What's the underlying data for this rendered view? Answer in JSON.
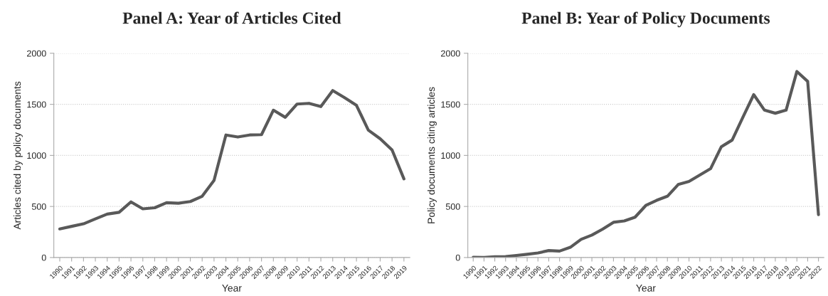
{
  "chart_data": [
    {
      "type": "line",
      "title": "Panel A: Year of Articles Cited",
      "xlabel": "Year",
      "ylabel": "Articles cited by policy documents",
      "categories": [
        "1990",
        "1991",
        "1992",
        "1993",
        "1994",
        "1995",
        "1996",
        "1997",
        "1998",
        "1999",
        "2000",
        "2001",
        "2002",
        "2003",
        "2004",
        "2005",
        "2006",
        "2007",
        "2008",
        "2009",
        "2010",
        "2011",
        "2012",
        "2013",
        "2014",
        "2015",
        "2016",
        "2017",
        "2018",
        "2019"
      ],
      "series": [
        {
          "color": "#595959",
          "values": [
            280,
            305,
            330,
            378,
            425,
            443,
            545,
            477,
            487,
            537,
            532,
            548,
            600,
            755,
            1200,
            1180,
            1200,
            1203,
            1443,
            1373,
            1503,
            1510,
            1478,
            1635,
            1565,
            1490,
            1248,
            1163,
            1053,
            770
          ]
        }
      ],
      "ylim": [
        0,
        2000
      ],
      "yticks": [
        0,
        500,
        1000,
        1500,
        2000
      ],
      "grid": "y",
      "line_style": "solid"
    },
    {
      "type": "line",
      "title": "Panel B: Year of Policy Documents",
      "xlabel": "Year",
      "ylabel": "Policy documents citing articles",
      "categories": [
        "1990",
        "1991",
        "1992",
        "1993",
        "1994",
        "1995",
        "1996",
        "1997",
        "1998",
        "1999",
        "2000",
        "2001",
        "2002",
        "2003",
        "2004",
        "2005",
        "2006",
        "2007",
        "2008",
        "2009",
        "2010",
        "2011",
        "2012",
        "2013",
        "2014",
        "2015",
        "2016",
        "2017",
        "2018",
        "2019",
        "2020",
        "2021",
        "2022"
      ],
      "series": [
        {
          "color": "#595959",
          "values": [
            2,
            0,
            7,
            10,
            20,
            32,
            45,
            68,
            63,
            100,
            178,
            220,
            278,
            345,
            358,
            395,
            510,
            560,
            600,
            715,
            745,
            808,
            870,
            1085,
            1150,
            1375,
            1595,
            1443,
            1413,
            1443,
            1822,
            1725,
            420
          ]
        }
      ],
      "ylim": [
        0,
        2000
      ],
      "yticks": [
        0,
        500,
        1000,
        1500,
        2000
      ],
      "grid": "y",
      "line_style": "solid"
    }
  ]
}
